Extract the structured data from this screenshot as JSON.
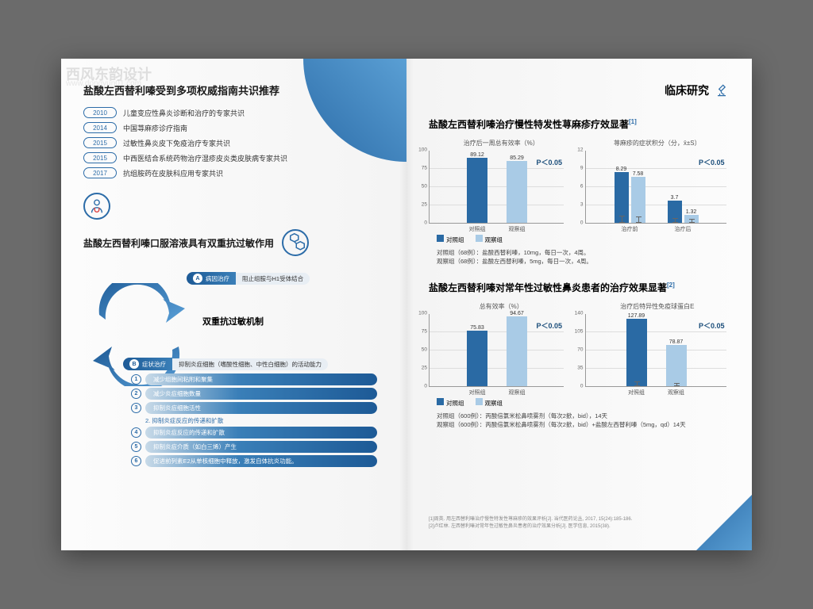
{
  "watermark": {
    "main": "西风东韵设计",
    "url": "www.dongyun01.com"
  },
  "colors": {
    "darkBar": "#2a6aa4",
    "lightBar": "#a9cbe6",
    "accent": "#2c6ca8"
  },
  "left": {
    "title": "盐酸左西替利嗪受到多项权威指南共识推荐",
    "years": [
      {
        "y": "2010",
        "t": "儿童变应性鼻炎诊断和治疗的专家共识"
      },
      {
        "y": "2014",
        "t": "中国荨麻疹诊疗指南"
      },
      {
        "y": "2015",
        "t": "过敏性鼻炎皮下免疫治疗专家共识"
      },
      {
        "y": "2015",
        "t": "中西医结合系统药物治疗湿疹皮炎类皮肤病专家共识"
      },
      {
        "y": "2017",
        "t": "抗组胺药在皮肤科应用专家共识"
      }
    ],
    "subtitle": "盐酸左西替利嗪口服溶液具有双重抗过敏作用",
    "mechCenter": "双重抗过敏机制",
    "pillA": {
      "letter": "A",
      "head": "病因治疗",
      "tail": "阻止组胺与H1受体结合"
    },
    "pillB": {
      "letter": "B",
      "head": "症状治疗",
      "tail": "抑制炎症细胞（嗜酸性细胞、中性白细胞）的活动能力"
    },
    "details": [
      "减少组胞间粘附和聚集",
      "减少炎症细胞数量",
      "抑制炎症细胞活性",
      "抑制炎症反应的传递和扩散",
      "抑制炎症介质（如白三烯）产生",
      "促进前列素E2从单核细胞中释放，激发自体抗炎功能。"
    ],
    "detailNote": "2. 抑制炎症反应的传递和扩散"
  },
  "right": {
    "header": "临床研究",
    "study1": {
      "title": "盐酸左西替利嗪治疗慢性特发性荨麻疹疗效显著",
      "ref": "[1]",
      "chartA": {
        "label": "治疗后一周总有效率（%）",
        "ymax": 100,
        "yticks": [
          0,
          25,
          50,
          75,
          100
        ],
        "bars": [
          {
            "x": "对照组",
            "v": 89.12,
            "c": "dark"
          },
          {
            "x": "观察组",
            "v": 85.29,
            "c": "light"
          }
        ],
        "p": "P＜0.05"
      },
      "chartB": {
        "label": "荨麻疹的症状积分（分，x̄±S）",
        "ymax": 12,
        "yticks": [
          0,
          3,
          6,
          9,
          12
        ],
        "groups": [
          {
            "x": "治疗前",
            "bars": [
              {
                "v": 8.29,
                "c": "dark",
                "err": 1.2
              },
              {
                "v": 7.58,
                "c": "light",
                "err": 1.1
              }
            ]
          },
          {
            "x": "治疗后",
            "bars": [
              {
                "v": 3.7,
                "c": "dark",
                "err": 0.8
              },
              {
                "v": 1.32,
                "c": "light",
                "err": 0.6
              }
            ]
          }
        ],
        "p": "P＜0.05"
      },
      "legend": [
        "对照组",
        "观察组"
      ],
      "notes": [
        "对照组（68例）：盐酸西替利嗪，10mg，每日一次，4周。",
        "观察组（68例）：盐酸左西替利嗪，5mg，每日一次，4周。"
      ]
    },
    "study2": {
      "title": "盐酸左西替利嗪对常年性过敏性鼻炎患者的治疗效果显著",
      "ref": "[2]",
      "chartA": {
        "label": "总有效率（%）",
        "ymax": 100,
        "yticks": [
          0,
          25,
          50,
          75,
          100
        ],
        "bars": [
          {
            "x": "对照组",
            "v": 75.83,
            "c": "dark"
          },
          {
            "x": "观察组",
            "v": 94.67,
            "c": "light"
          }
        ],
        "p": "P＜0.05"
      },
      "chartB": {
        "label": "治疗后特异性免疫球蛋白E",
        "ymax": 140,
        "yticks": [
          0,
          35,
          70,
          105,
          140
        ],
        "bars": [
          {
            "x": "对照组",
            "v": 127.89,
            "c": "dark",
            "err": 8
          },
          {
            "x": "观察组",
            "v": 78.87,
            "c": "light",
            "err": 6
          }
        ],
        "p": "P＜0.05"
      },
      "legend": [
        "对照组",
        "观察组"
      ],
      "notes": [
        "对照组（600例）：丙酸倍氯米松鼻喷雾剂（每次2掀，bid），14天",
        "观察组（600例）：丙酸倍氯米松鼻喷雾剂（每次2掀，bid）+盐酸左西替利嗪（5mg，qd）14天"
      ]
    },
    "refs": [
      "[1]周英. 用左西替利嗪治疗慢性特发性荨麻疹的效果评析[J]. 当代医药论丛, 2017, 15(24):185-186.",
      "[2]卢红林. 左西替利嗪对常年性过敏性鼻炎患者的治疗效果分析[J]. 医学信息, 2015(38)."
    ]
  }
}
